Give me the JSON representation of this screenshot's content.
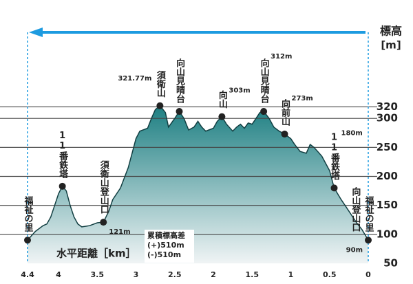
{
  "chart_data": {
    "type": "elevation-profile",
    "ylabel": "標高",
    "yunit": "[m]",
    "xlabel": "水平距離［km］",
    "annotation": [
      "累積標高差",
      "(+)510m",
      "(-)510m"
    ],
    "xlim": [
      4.4,
      0
    ],
    "ylim": [
      50,
      350
    ],
    "xticks": [
      4.4,
      4.0,
      3.5,
      3.0,
      2.5,
      2.0,
      1.5,
      1.0,
      0.5,
      0
    ],
    "yticks": [
      50,
      100,
      150,
      200,
      250,
      300,
      320
    ],
    "grid": true,
    "color": "#1d7f82",
    "line_color": "#123f42",
    "arrow_color": "#1d9be0",
    "profile": {
      "x": [
        4.4,
        4.3,
        4.2,
        4.15,
        4.1,
        4.05,
        4.0,
        3.95,
        3.9,
        3.85,
        3.8,
        3.75,
        3.7,
        3.6,
        3.5,
        3.42,
        3.35,
        3.3,
        3.2,
        3.1,
        3.05,
        3.0,
        2.95,
        2.85,
        2.8,
        2.75,
        2.69,
        2.62,
        2.58,
        2.5,
        2.44,
        2.38,
        2.32,
        2.25,
        2.2,
        2.15,
        2.1,
        2.0,
        1.95,
        1.89,
        1.83,
        1.75,
        1.7,
        1.65,
        1.6,
        1.55,
        1.5,
        1.45,
        1.4,
        1.35,
        1.28,
        1.22,
        1.15,
        1.08,
        1.0,
        0.95,
        0.88,
        0.8,
        0.75,
        0.7,
        0.6,
        0.5,
        0.44,
        0.35,
        0.25,
        0.15,
        0.08,
        0
      ],
      "y": [
        90,
        105,
        115,
        118,
        130,
        150,
        170,
        183,
        175,
        150,
        130,
        118,
        113,
        115,
        120,
        121,
        140,
        160,
        180,
        215,
        240,
        265,
        278,
        283,
        300,
        315,
        322,
        310,
        285,
        300,
        312,
        300,
        280,
        285,
        295,
        285,
        278,
        283,
        295,
        303,
        290,
        278,
        285,
        290,
        283,
        292,
        290,
        300,
        310,
        312,
        300,
        285,
        278,
        273,
        265,
        255,
        243,
        240,
        255,
        250,
        235,
        210,
        180,
        160,
        140,
        120,
        108,
        90
      ]
    },
    "points": [
      {
        "name": "福祉の里",
        "x": 4.4,
        "elevation": 90,
        "value_label": null
      },
      {
        "name": "11番鉄塔",
        "x": 3.95,
        "elevation": 183,
        "value_label": null
      },
      {
        "name": "須衛山登山口",
        "x": 3.42,
        "elevation": 121,
        "value_label": "121m"
      },
      {
        "name": "須衛山",
        "x": 2.69,
        "elevation": 321.77,
        "value_label": "321.77m"
      },
      {
        "name": "向山見晴台",
        "x": 2.44,
        "elevation": 312,
        "value_label": null
      },
      {
        "name": "向山",
        "x": 1.89,
        "elevation": 303,
        "value_label": "303m"
      },
      {
        "name": "向山見晴台",
        "x": 1.35,
        "elevation": 312,
        "value_label": "312m"
      },
      {
        "name": "向前山",
        "x": 1.08,
        "elevation": 273,
        "value_label": "273m"
      },
      {
        "name": "11番鉄塔",
        "x": 0.44,
        "elevation": 180,
        "value_label": "180m"
      },
      {
        "name": "向山登山口",
        "x": 0.17,
        "elevation": null,
        "value_label": null
      },
      {
        "name": "福祉の里",
        "x": 0,
        "elevation": 90,
        "value_label": "90m"
      }
    ]
  }
}
